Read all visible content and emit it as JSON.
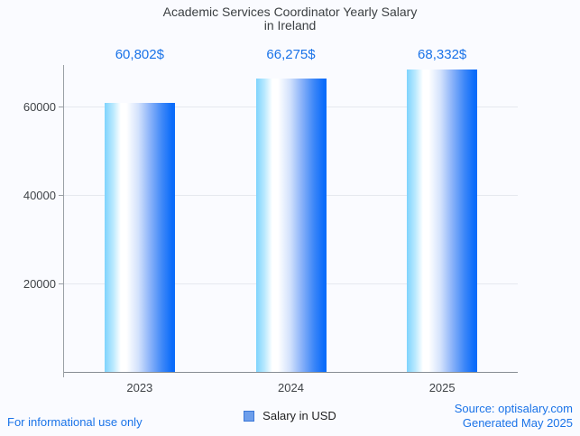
{
  "page": {
    "background": "#fafbff",
    "footer_left": "For informational use only",
    "footer_right_line1": "Source: optisalary.com",
    "footer_right_line2": "Generated May 2025"
  },
  "legend": {
    "label": "Salary in USD",
    "swatch_color": "#6d9eeb",
    "swatch_border": "#3c78d8"
  },
  "chart_data": {
    "type": "bar",
    "title": "Academic Services Coordinator Yearly Salary",
    "subtitle": "in Ireland",
    "categories": [
      "2023",
      "2024",
      "2025"
    ],
    "values": [
      60802,
      66275,
      68332
    ],
    "value_labels": [
      "60,802$",
      "66,275$",
      "68,332$"
    ],
    "series_name": "Salary in USD",
    "yticks": [
      20000,
      40000,
      60000
    ],
    "ylim": [
      0,
      69400
    ],
    "grid": true,
    "legend_position": "bottom",
    "colors": {
      "value_label": "#1a73e8",
      "title": "#3c4043",
      "axis_label": "#3f4347",
      "axis_line": "#9aa0a6",
      "grid_line": "#e6e9ef",
      "bar_gradient_left": "#7ed3fd",
      "bar_gradient_mid": "#ffffff",
      "bar_gradient_right": "#0b6cfa",
      "footer_text": "#1a73e8"
    }
  }
}
